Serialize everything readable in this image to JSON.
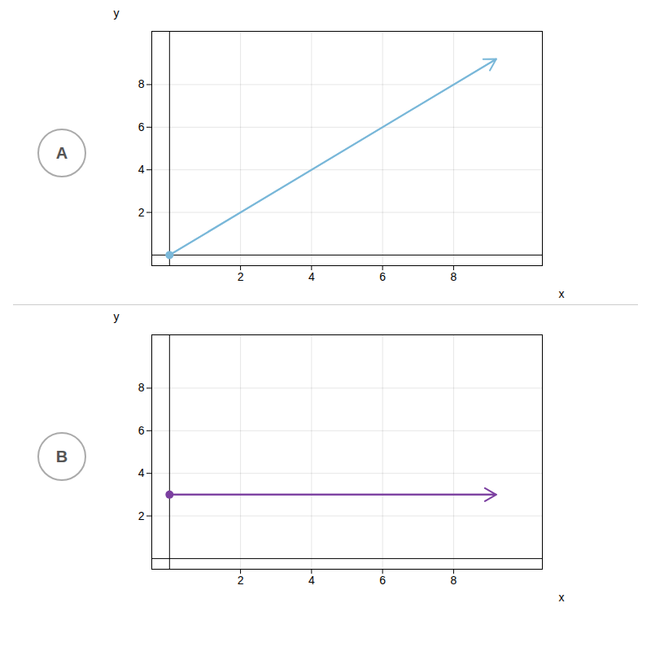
{
  "chart_data": [
    {
      "type": "ray",
      "title": "A",
      "x": [
        0,
        9.2
      ],
      "series": [
        {
          "color": "#7ab8d9",
          "values": [
            0,
            9.2
          ]
        }
      ],
      "xlim": [
        -0.5,
        10.5
      ],
      "ylim": [
        -0.5,
        10.5
      ],
      "xticks": [
        2,
        4,
        6,
        8
      ],
      "yticks": [
        2,
        4,
        6,
        8
      ],
      "xlabel": "x",
      "ylabel": "y",
      "grid": true
    },
    {
      "type": "ray",
      "title": "B",
      "x": [
        0,
        9.2
      ],
      "series": [
        {
          "color": "#7b3fa0",
          "values": [
            3,
            3
          ]
        }
      ],
      "xlim": [
        -0.5,
        10.5
      ],
      "ylim": [
        -0.5,
        10.5
      ],
      "xticks": [
        2,
        4,
        6,
        8
      ],
      "yticks": [
        2,
        4,
        6,
        8
      ],
      "xlabel": "x",
      "ylabel": "y",
      "grid": true
    }
  ]
}
